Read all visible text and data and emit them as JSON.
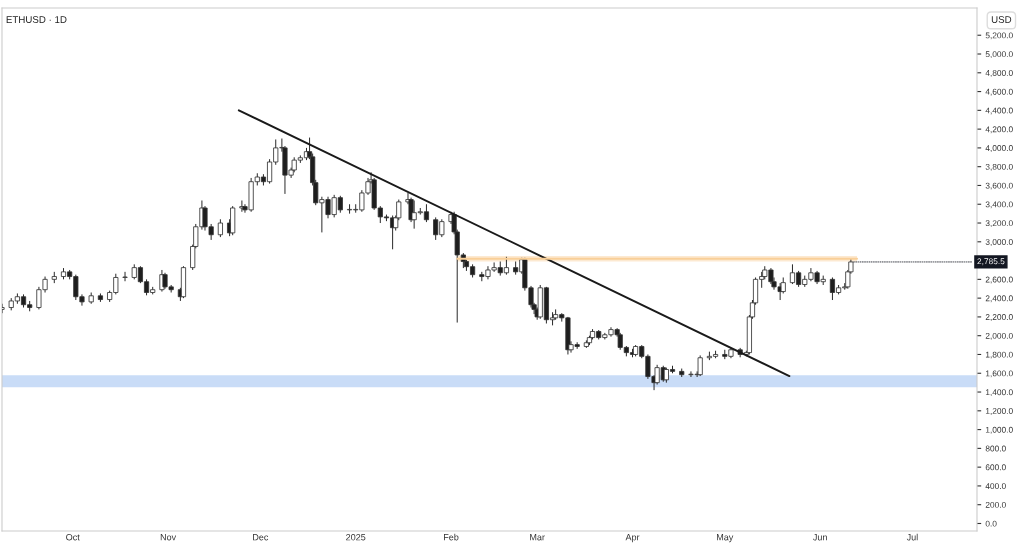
{
  "chart_data": {
    "type": "candlestick",
    "title": "ETHUSD · 1D",
    "ylabel": "USD",
    "x": [
      "2024-09-08",
      "2024-09-11",
      "2024-09-13",
      "2024-09-15",
      "2024-09-17",
      "2024-09-20",
      "2024-09-22",
      "2024-09-25",
      "2024-09-28",
      "2024-09-30",
      "2024-10-02",
      "2024-10-04",
      "2024-10-07",
      "2024-10-10",
      "2024-10-13",
      "2024-10-15",
      "2024-10-18",
      "2024-10-21",
      "2024-10-23",
      "2024-10-25",
      "2024-10-27",
      "2024-10-30",
      "2024-10-31",
      "2024-11-02",
      "2024-11-05",
      "2024-11-06",
      "2024-11-09",
      "2024-11-10",
      "2024-11-12",
      "2024-11-13",
      "2024-11-15",
      "2024-11-18",
      "2024-11-21",
      "2024-11-22",
      "2024-11-25",
      "2024-11-26",
      "2024-11-28",
      "2024-11-30",
      "2024-12-02",
      "2024-12-04",
      "2024-12-06",
      "2024-12-08",
      "2024-12-09",
      "2024-12-11",
      "2024-12-12",
      "2024-12-14",
      "2024-12-16",
      "2024-12-17",
      "2024-12-18",
      "2024-12-19",
      "2024-12-21",
      "2024-12-23",
      "2024-12-25",
      "2024-12-27",
      "2024-12-30",
      "2025-01-01",
      "2025-01-03",
      "2025-01-05",
      "2025-01-06",
      "2025-01-07",
      "2025-01-09",
      "2025-01-11",
      "2025-01-13",
      "2025-01-14",
      "2025-01-15",
      "2025-01-18",
      "2025-01-19",
      "2025-01-20",
      "2025-01-22",
      "2025-01-24",
      "2025-01-27",
      "2025-01-29",
      "2025-02-01",
      "2025-02-02",
      "2025-02-03",
      "2025-02-05",
      "2025-02-06",
      "2025-02-08",
      "2025-02-11",
      "2025-02-13",
      "2025-02-15",
      "2025-02-17",
      "2025-02-19",
      "2025-02-22",
      "2025-02-24",
      "2025-02-25",
      "2025-02-27",
      "2025-02-28",
      "2025-03-01",
      "2025-03-02",
      "2025-03-04",
      "2025-03-06",
      "2025-03-07",
      "2025-03-09",
      "2025-03-11",
      "2025-03-12",
      "2025-03-14",
      "2025-03-17",
      "2025-03-18",
      "2025-03-19",
      "2025-03-21",
      "2025-03-23",
      "2025-03-25",
      "2025-03-27",
      "2025-03-28",
      "2025-03-30",
      "2025-04-01",
      "2025-04-02",
      "2025-04-04",
      "2025-04-06",
      "2025-04-08",
      "2025-04-09",
      "2025-04-11",
      "2025-04-12",
      "2025-04-14",
      "2025-04-17",
      "2025-04-20",
      "2025-04-22",
      "2025-04-23",
      "2025-04-26",
      "2025-04-28",
      "2025-05-01",
      "2025-05-03",
      "2025-05-06",
      "2025-05-08",
      "2025-05-09",
      "2025-05-10",
      "2025-05-11",
      "2025-05-13",
      "2025-05-14",
      "2025-05-16",
      "2025-05-17",
      "2025-05-19",
      "2025-05-20",
      "2025-05-23",
      "2025-05-25",
      "2025-05-27",
      "2025-05-29",
      "2025-05-31",
      "2025-06-02",
      "2025-06-05",
      "2025-06-07",
      "2025-06-09",
      "2025-06-10",
      "2025-06-11"
    ],
    "ohlc": [
      [
        2280,
        2340,
        2240,
        2300
      ],
      [
        2300,
        2400,
        2270,
        2370
      ],
      [
        2370,
        2450,
        2340,
        2415
      ],
      [
        2415,
        2440,
        2300,
        2330
      ],
      [
        2330,
        2370,
        2260,
        2300
      ],
      [
        2300,
        2520,
        2280,
        2490
      ],
      [
        2490,
        2630,
        2460,
        2600
      ],
      [
        2600,
        2680,
        2560,
        2630
      ],
      [
        2630,
        2720,
        2600,
        2680
      ],
      [
        2680,
        2700,
        2600,
        2630
      ],
      [
        2630,
        2650,
        2380,
        2415
      ],
      [
        2415,
        2440,
        2320,
        2360
      ],
      [
        2360,
        2460,
        2340,
        2425
      ],
      [
        2425,
        2450,
        2360,
        2385
      ],
      [
        2385,
        2480,
        2360,
        2460
      ],
      [
        2460,
        2660,
        2440,
        2620
      ],
      [
        2620,
        2680,
        2580,
        2620
      ],
      [
        2620,
        2760,
        2600,
        2725
      ],
      [
        2725,
        2740,
        2560,
        2575
      ],
      [
        2575,
        2600,
        2430,
        2460
      ],
      [
        2460,
        2520,
        2440,
        2490
      ],
      [
        2490,
        2700,
        2470,
        2650
      ],
      [
        2650,
        2670,
        2500,
        2520
      ],
      [
        2520,
        2540,
        2460,
        2490
      ],
      [
        2490,
        2510,
        2370,
        2415
      ],
      [
        2415,
        2740,
        2400,
        2725
      ],
      [
        2725,
        2970,
        2700,
        2950
      ],
      [
        2950,
        3190,
        2930,
        3160
      ],
      [
        3160,
        3440,
        3130,
        3360
      ],
      [
        3360,
        3380,
        3120,
        3160
      ],
      [
        3160,
        3190,
        3020,
        3075
      ],
      [
        3075,
        3240,
        3050,
        3200
      ],
      [
        3200,
        3240,
        3060,
        3095
      ],
      [
        3095,
        3380,
        3070,
        3360
      ],
      [
        3360,
        3440,
        3320,
        3375
      ],
      [
        3375,
        3400,
        3310,
        3340
      ],
      [
        3340,
        3680,
        3320,
        3640
      ],
      [
        3640,
        3730,
        3600,
        3690
      ],
      [
        3690,
        3720,
        3600,
        3640
      ],
      [
        3640,
        3880,
        3620,
        3850
      ],
      [
        3850,
        4090,
        3820,
        4000
      ],
      [
        4000,
        4100,
        3960,
        4000
      ],
      [
        4000,
        4020,
        3510,
        3710
      ],
      [
        3710,
        3790,
        3680,
        3765
      ],
      [
        3765,
        3900,
        3740,
        3870
      ],
      [
        3870,
        3920,
        3840,
        3895
      ],
      [
        3895,
        4000,
        3870,
        3960
      ],
      [
        3960,
        4110,
        3880,
        3905
      ],
      [
        3905,
        3940,
        3600,
        3630
      ],
      [
        3630,
        3660,
        3390,
        3415
      ],
      [
        3415,
        3480,
        3100,
        3450
      ],
      [
        3450,
        3480,
        3250,
        3290
      ],
      [
        3290,
        3500,
        3260,
        3470
      ],
      [
        3470,
        3490,
        3310,
        3340
      ],
      [
        3340,
        3400,
        3300,
        3340
      ],
      [
        3340,
        3400,
        3310,
        3340
      ],
      [
        3340,
        3550,
        3320,
        3520
      ],
      [
        3520,
        3680,
        3500,
        3640
      ],
      [
        3640,
        3740,
        3620,
        3660
      ],
      [
        3660,
        3680,
        3340,
        3360
      ],
      [
        3360,
        3380,
        3200,
        3265
      ],
      [
        3265,
        3290,
        3220,
        3255
      ],
      [
        3255,
        3280,
        2920,
        3150
      ],
      [
        3150,
        3280,
        3120,
        3255
      ],
      [
        3255,
        3450,
        3230,
        3425
      ],
      [
        3425,
        3520,
        3400,
        3450
      ],
      [
        3450,
        3470,
        3210,
        3235
      ],
      [
        3235,
        3440,
        3140,
        3310
      ],
      [
        3310,
        3360,
        3290,
        3320
      ],
      [
        3320,
        3400,
        3210,
        3235
      ],
      [
        3235,
        3260,
        3020,
        3075
      ],
      [
        3075,
        3240,
        3050,
        3215
      ],
      [
        3215,
        3320,
        3190,
        3290
      ],
      [
        3290,
        3320,
        3080,
        3105
      ],
      [
        3105,
        3130,
        2140,
        2860
      ],
      [
        2860,
        2880,
        2720,
        2790
      ],
      [
        2790,
        2810,
        2690,
        2735
      ],
      [
        2735,
        2760,
        2620,
        2650
      ],
      [
        2650,
        2680,
        2580,
        2630
      ],
      [
        2630,
        2740,
        2600,
        2700
      ],
      [
        2700,
        2780,
        2680,
        2725
      ],
      [
        2725,
        2790,
        2640,
        2670
      ],
      [
        2670,
        2840,
        2650,
        2725
      ],
      [
        2725,
        2790,
        2650,
        2680
      ],
      [
        2680,
        2830,
        2660,
        2810
      ],
      [
        2810,
        2830,
        2480,
        2510
      ],
      [
        2510,
        2530,
        2300,
        2330
      ],
      [
        2330,
        2350,
        2230,
        2280
      ],
      [
        2280,
        2300,
        2170,
        2200
      ],
      [
        2200,
        2540,
        2180,
        2510
      ],
      [
        2510,
        2520,
        2130,
        2170
      ],
      [
        2170,
        2250,
        2110,
        2190
      ],
      [
        2190,
        2280,
        2170,
        2225
      ],
      [
        2225,
        2240,
        2150,
        2190
      ],
      [
        2190,
        2200,
        1800,
        1850
      ],
      [
        1850,
        1940,
        1820,
        1905
      ],
      [
        1905,
        1930,
        1860,
        1885
      ],
      [
        1885,
        1950,
        1870,
        1925
      ],
      [
        1925,
        2000,
        1900,
        1980
      ],
      [
        1980,
        2070,
        1960,
        2045
      ],
      [
        2045,
        2060,
        1960,
        1980
      ],
      [
        1980,
        2030,
        1960,
        2010
      ],
      [
        2010,
        2090,
        1990,
        2065
      ],
      [
        2065,
        2080,
        1990,
        2010
      ],
      [
        2010,
        2030,
        1850,
        1875
      ],
      [
        1875,
        1890,
        1780,
        1820
      ],
      [
        1820,
        1860,
        1770,
        1800
      ],
      [
        1800,
        1900,
        1780,
        1885
      ],
      [
        1885,
        1900,
        1760,
        1780
      ],
      [
        1780,
        1800,
        1540,
        1565
      ],
      [
        1565,
        1580,
        1420,
        1500
      ],
      [
        1500,
        1690,
        1480,
        1660
      ],
      [
        1660,
        1680,
        1510,
        1530
      ],
      [
        1530,
        1660,
        1500,
        1640
      ],
      [
        1640,
        1680,
        1600,
        1620
      ],
      [
        1620,
        1650,
        1560,
        1585
      ],
      [
        1585,
        1620,
        1560,
        1585
      ],
      [
        1585,
        1620,
        1560,
        1585
      ],
      [
        1585,
        1790,
        1570,
        1765
      ],
      [
        1765,
        1830,
        1740,
        1780
      ],
      [
        1780,
        1840,
        1760,
        1800
      ],
      [
        1800,
        1850,
        1750,
        1780
      ],
      [
        1780,
        1870,
        1760,
        1850
      ],
      [
        1850,
        1870,
        1770,
        1800
      ],
      [
        1800,
        1840,
        1780,
        1820
      ],
      [
        1820,
        2220,
        1800,
        2200
      ],
      [
        2200,
        2380,
        2180,
        2350
      ],
      [
        2350,
        2620,
        2330,
        2600
      ],
      [
        2600,
        2680,
        2510,
        2630
      ],
      [
        2630,
        2740,
        2600,
        2700
      ],
      [
        2700,
        2720,
        2550,
        2575
      ],
      [
        2575,
        2620,
        2490,
        2520
      ],
      [
        2520,
        2560,
        2380,
        2470
      ],
      [
        2470,
        2620,
        2450,
        2565
      ],
      [
        2565,
        2760,
        2550,
        2670
      ],
      [
        2670,
        2690,
        2520,
        2545
      ],
      [
        2545,
        2640,
        2520,
        2600
      ],
      [
        2600,
        2720,
        2580,
        2670
      ],
      [
        2670,
        2690,
        2550,
        2575
      ],
      [
        2575,
        2640,
        2540,
        2600
      ],
      [
        2600,
        2620,
        2380,
        2460
      ],
      [
        2460,
        2540,
        2440,
        2510
      ],
      [
        2510,
        2560,
        2490,
        2520
      ],
      [
        2520,
        2700,
        2500,
        2680
      ],
      [
        2680,
        2820,
        2660,
        2785.5
      ]
    ],
    "series": [
      {
        "type": "line",
        "x": [
          "2024-11-24",
          "2025-05-22"
        ],
        "values": [
          4400,
          1570
        ],
        "color": "#1a1a1a"
      },
      {
        "type": "line",
        "x": [
          "2025-02-03",
          "2025-06-13"
        ],
        "values": [
          2820,
          2820
        ],
        "lower": [
          2790,
          2790
        ],
        "upper": [
          2850,
          2850
        ],
        "color": "#f9cf98"
      }
    ],
    "bands": [
      {
        "axis": "y",
        "from": 1450,
        "to": 1580,
        "color": "#c9dcf7"
      }
    ],
    "annotations": [
      {
        "text": "2,785.5",
        "x": "2025-06-11",
        "y": 2785.5
      }
    ],
    "xlim": [
      "2024-09-08",
      "2025-07-22"
    ],
    "xticks": [
      {
        "value": "2024-10-01",
        "label": "Oct"
      },
      {
        "value": "2024-11-01",
        "label": "Nov"
      },
      {
        "value": "2024-12-01",
        "label": "Dec"
      },
      {
        "value": "2025-01-01",
        "label": "2025"
      },
      {
        "value": "2025-02-01",
        "label": "Feb"
      },
      {
        "value": "2025-03-01",
        "label": "Mar"
      },
      {
        "value": "2025-04-01",
        "label": "Apr"
      },
      {
        "value": "2025-05-01",
        "label": "May"
      },
      {
        "value": "2025-06-01",
        "label": "Jun"
      },
      {
        "value": "2025-07-01",
        "label": "Jul"
      }
    ],
    "ylim": [
      -80,
      5490
    ],
    "yticks": [
      {
        "value": 0,
        "label": "0.0"
      },
      {
        "value": 200,
        "label": "200.0"
      },
      {
        "value": 400,
        "label": "400.0"
      },
      {
        "value": 600,
        "label": "600.0"
      },
      {
        "value": 800,
        "label": "800.0"
      },
      {
        "value": 1000,
        "label": "1,000.0"
      },
      {
        "value": 1200,
        "label": "1,200.0"
      },
      {
        "value": 1400,
        "label": "1,400.0"
      },
      {
        "value": 1600,
        "label": "1,600.0"
      },
      {
        "value": 1800,
        "label": "1,800.0"
      },
      {
        "value": 2000,
        "label": "2,000.0"
      },
      {
        "value": 2200,
        "label": "2,200.0"
      },
      {
        "value": 2400,
        "label": "2,400.0"
      },
      {
        "value": 2600,
        "label": "2,600.0"
      },
      {
        "value": 3000,
        "label": "3,000.0"
      },
      {
        "value": 3200,
        "label": "3,200.0"
      },
      {
        "value": 3400,
        "label": "3,400.0"
      },
      {
        "value": 3600,
        "label": "3,600.0"
      },
      {
        "value": 3800,
        "label": "3,800.0"
      },
      {
        "value": 4000,
        "label": "4,000.0"
      },
      {
        "value": 4200,
        "label": "4,200.0"
      },
      {
        "value": 4400,
        "label": "4,400.0"
      },
      {
        "value": 4600,
        "label": "4,600.0"
      },
      {
        "value": 4800,
        "label": "4,800.0"
      },
      {
        "value": 5000,
        "label": "5,000.0"
      },
      {
        "value": 5200,
        "label": "5,200.0"
      }
    ],
    "grid": false,
    "legend": false
  }
}
